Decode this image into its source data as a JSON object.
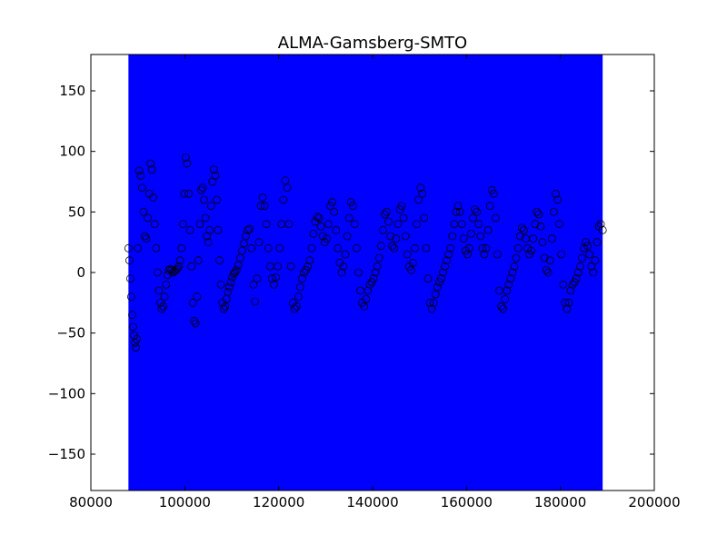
{
  "chart_data": {
    "type": "scatter",
    "title": "ALMA-Gamsberg-SMTO",
    "xlabel": "",
    "ylabel": "",
    "xlim": [
      80000,
      200000
    ],
    "ylim": [
      -180,
      180
    ],
    "x_ticks": [
      80000,
      100000,
      120000,
      140000,
      160000,
      180000,
      200000
    ],
    "x_tick_labels": [
      "80000",
      "100000",
      "120000",
      "140000",
      "160000",
      "180000",
      "200000"
    ],
    "y_ticks": [
      -150,
      -100,
      -50,
      0,
      50,
      100,
      150
    ],
    "y_tick_labels": [
      "−150",
      "−100",
      "−50",
      "0",
      "50",
      "100",
      "150"
    ],
    "grid": false,
    "legend": "none",
    "shaded_region": {
      "x_start": 88000,
      "x_end": 189000,
      "color": "#0000ff"
    },
    "marker": {
      "shape": "open-circle",
      "edge_color": "#000000"
    },
    "points": {
      "x": [
        88000,
        88200,
        88400,
        88600,
        88800,
        89000,
        89200,
        89400,
        89600,
        89800,
        90000,
        90300,
        90600,
        90900,
        91200,
        91500,
        91800,
        92100,
        92400,
        92700,
        93000,
        93300,
        93600,
        93900,
        94200,
        94500,
        94800,
        95100,
        95400,
        95700,
        96000,
        96300,
        96600,
        96900,
        97200,
        97500,
        97800,
        98100,
        98400,
        98700,
        99000,
        99300,
        99600,
        99900,
        100200,
        100500,
        100800,
        101100,
        101400,
        101700,
        102000,
        102300,
        102600,
        102900,
        103200,
        103500,
        103800,
        104100,
        104400,
        104700,
        105000,
        105300,
        105600,
        105900,
        106200,
        106500,
        106800,
        107100,
        107400,
        107700,
        108000,
        108300,
        108600,
        108900,
        109200,
        109500,
        109800,
        110100,
        110400,
        110700,
        111000,
        111400,
        111800,
        112200,
        112600,
        113000,
        113400,
        113800,
        114200,
        114600,
        115000,
        115400,
        115800,
        116200,
        116600,
        117000,
        117400,
        117800,
        118200,
        118600,
        119000,
        119400,
        119800,
        120200,
        120600,
        121000,
        121400,
        121800,
        122200,
        122600,
        123000,
        123400,
        123800,
        124200,
        124600,
        125000,
        125400,
        125800,
        126200,
        126600,
        127000,
        127400,
        127800,
        128200,
        128600,
        129000,
        129400,
        129800,
        130200,
        130600,
        131000,
        131400,
        131800,
        132200,
        132600,
        133000,
        133400,
        133800,
        134200,
        134600,
        135000,
        135400,
        135800,
        136200,
        136600,
        137000,
        137400,
        137800,
        138200,
        138600,
        139000,
        139400,
        139800,
        140200,
        140600,
        141000,
        141400,
        141800,
        142200,
        142600,
        143000,
        143400,
        143800,
        144200,
        144600,
        145000,
        145400,
        145800,
        146200,
        146600,
        147000,
        147400,
        147800,
        148200,
        148600,
        149000,
        149400,
        149800,
        150200,
        150600,
        151000,
        151400,
        151800,
        152200,
        152600,
        153000,
        153400,
        153800,
        154200,
        154600,
        155000,
        155400,
        155800,
        156200,
        156600,
        157000,
        157400,
        157800,
        158200,
        158600,
        159000,
        159400,
        159800,
        160200,
        160600,
        161000,
        161400,
        161800,
        162200,
        162600,
        163000,
        163400,
        163800,
        164200,
        164600,
        165000,
        165400,
        165800,
        166200,
        166600,
        167000,
        167400,
        167800,
        168200,
        168600,
        169000,
        169400,
        169800,
        170200,
        170600,
        171000,
        171400,
        171800,
        172200,
        172600,
        173000,
        173400,
        173800,
        174200,
        174600,
        175000,
        175400,
        175800,
        176200,
        176600,
        177000,
        177400,
        177800,
        178200,
        178600,
        179000,
        179400,
        179800,
        180200,
        180600,
        181000,
        181400,
        181800,
        182200,
        182600,
        183000,
        183400,
        183800,
        184200,
        184600,
        185000,
        185400,
        185800,
        186200,
        186600,
        187000,
        187400,
        187800,
        188200,
        188600,
        189000
      ],
      "y": [
        20,
        10,
        -5,
        -20,
        -35,
        -45,
        -52,
        -58,
        -62,
        -55,
        20,
        84,
        80,
        70,
        50,
        30,
        28,
        45,
        65,
        90,
        85,
        62,
        40,
        20,
        0,
        -15,
        -25,
        -30,
        -28,
        -20,
        -10,
        -2,
        2,
        3,
        2,
        0,
        1,
        2,
        3,
        5,
        10,
        20,
        40,
        65,
        95,
        90,
        65,
        35,
        5,
        -25,
        -40,
        -42,
        -20,
        10,
        40,
        68,
        70,
        60,
        45,
        30,
        25,
        35,
        55,
        75,
        85,
        80,
        60,
        35,
        10,
        -10,
        -25,
        -30,
        -28,
        -22,
        -16,
        -12,
        -8,
        -4,
        -1,
        0,
        2,
        6,
        12,
        18,
        24,
        30,
        35,
        36,
        20,
        -10,
        -24,
        -5,
        25,
        55,
        62,
        55,
        40,
        20,
        5,
        -5,
        -10,
        -4,
        5,
        20,
        40,
        60,
        76,
        70,
        40,
        5,
        -25,
        -30,
        -28,
        -20,
        -12,
        -5,
        0,
        2,
        5,
        10,
        20,
        32,
        42,
        46,
        45,
        38,
        30,
        25,
        28,
        40,
        55,
        58,
        50,
        35,
        20,
        8,
        0,
        5,
        15,
        30,
        45,
        58,
        55,
        40,
        20,
        0,
        -15,
        -25,
        -28,
        -22,
        -15,
        -10,
        -8,
        -5,
        0,
        5,
        12,
        22,
        35,
        48,
        50,
        42,
        30,
        22,
        20,
        28,
        40,
        52,
        55,
        45,
        30,
        15,
        5,
        2,
        8,
        20,
        40,
        60,
        70,
        65,
        45,
        20,
        -5,
        -25,
        -30,
        -25,
        -18,
        -12,
        -8,
        -5,
        0,
        5,
        10,
        15,
        20,
        30,
        40,
        50,
        55,
        50,
        40,
        28,
        18,
        15,
        20,
        32,
        45,
        52,
        50,
        40,
        30,
        20,
        15,
        20,
        35,
        55,
        68,
        65,
        45,
        15,
        -15,
        -28,
        -30,
        -22,
        -15,
        -10,
        -5,
        0,
        5,
        12,
        20,
        30,
        37,
        35,
        28,
        20,
        15,
        18,
        28,
        40,
        50,
        48,
        38,
        25,
        12,
        2,
        0,
        10,
        28,
        50,
        65,
        60,
        40,
        15,
        -10,
        -25,
        -30,
        -25,
        -15,
        -10,
        -8,
        -5,
        0,
        5,
        12,
        20,
        25,
        22,
        15,
        5,
        0,
        10,
        25,
        38,
        40,
        35
      ]
    }
  }
}
